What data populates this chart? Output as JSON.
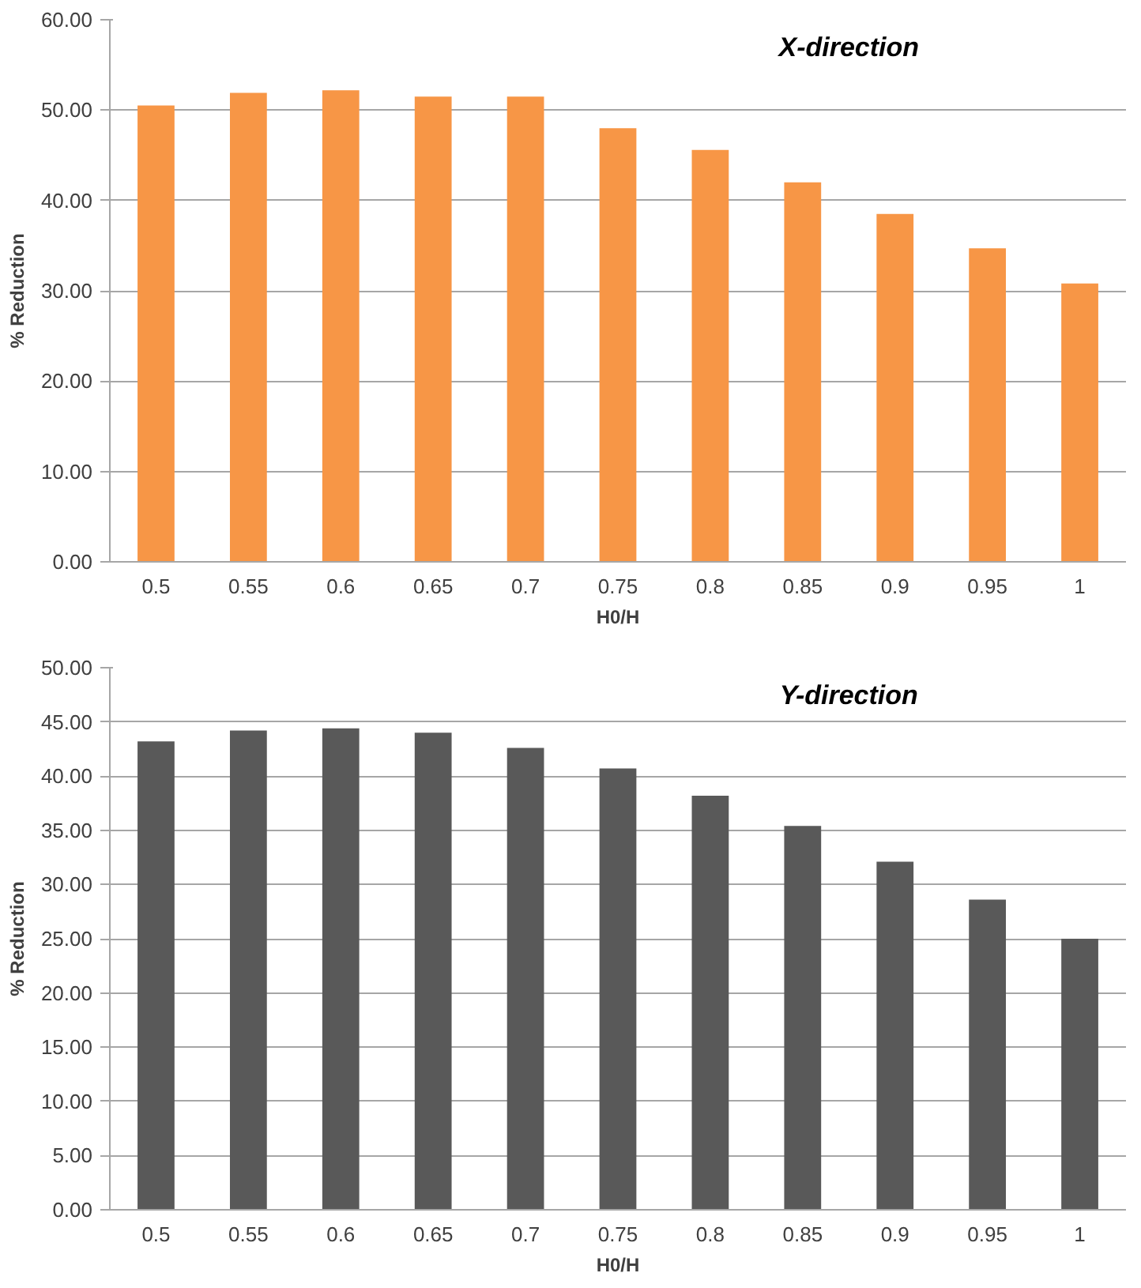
{
  "chart_data": [
    {
      "type": "bar",
      "title": "X-direction",
      "xlabel": "H0/H",
      "ylabel": "% Reduction",
      "categories": [
        "0.5",
        "0.55",
        "0.6",
        "0.65",
        "0.7",
        "0.75",
        "0.8",
        "0.85",
        "0.9",
        "0.95",
        "1"
      ],
      "values": [
        50.5,
        51.9,
        52.2,
        51.5,
        51.5,
        48.0,
        45.6,
        42.0,
        38.5,
        34.7,
        30.8
      ],
      "color": "#f79646",
      "ylim": [
        0,
        60
      ],
      "yticks": [
        {
          "value": 0,
          "label": "0.00"
        },
        {
          "value": 10,
          "label": "10.00"
        },
        {
          "value": 20,
          "label": "20.00"
        },
        {
          "value": 30,
          "label": "30.00"
        },
        {
          "value": 40,
          "label": "40.00"
        },
        {
          "value": 50,
          "label": "50.00"
        },
        {
          "value": 60,
          "label": "60.00"
        }
      ],
      "grid": "y"
    },
    {
      "type": "bar",
      "title": "Y-direction",
      "xlabel": "H0/H",
      "ylabel": "% Reduction",
      "categories": [
        "0.5",
        "0.55",
        "0.6",
        "0.65",
        "0.7",
        "0.75",
        "0.8",
        "0.85",
        "0.9",
        "0.95",
        "1"
      ],
      "values": [
        43.2,
        44.2,
        44.4,
        44.0,
        42.6,
        40.7,
        38.2,
        35.4,
        32.1,
        28.6,
        25.0
      ],
      "color": "#595959",
      "ylim": [
        0,
        50
      ],
      "yticks": [
        {
          "value": 0,
          "label": "0.00"
        },
        {
          "value": 5,
          "label": "5.00"
        },
        {
          "value": 10,
          "label": "10.00"
        },
        {
          "value": 15,
          "label": "15.00"
        },
        {
          "value": 20,
          "label": "20.00"
        },
        {
          "value": 25,
          "label": "25.00"
        },
        {
          "value": 30,
          "label": "30.00"
        },
        {
          "value": 35,
          "label": "35.00"
        },
        {
          "value": 40,
          "label": "40.00"
        },
        {
          "value": 45,
          "label": "45.00"
        },
        {
          "value": 50,
          "label": "50.00"
        }
      ],
      "grid": "y"
    }
  ]
}
